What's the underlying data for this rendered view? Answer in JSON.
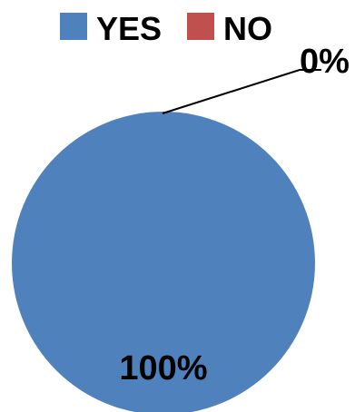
{
  "chart_data": {
    "type": "pie",
    "categories": [
      "YES",
      "NO"
    ],
    "values": [
      100,
      0
    ],
    "data_labels": [
      "100%",
      "0%"
    ],
    "legend_position": "top",
    "colors": {
      "YES": "#4F81BD",
      "NO": "#C0504D"
    }
  }
}
